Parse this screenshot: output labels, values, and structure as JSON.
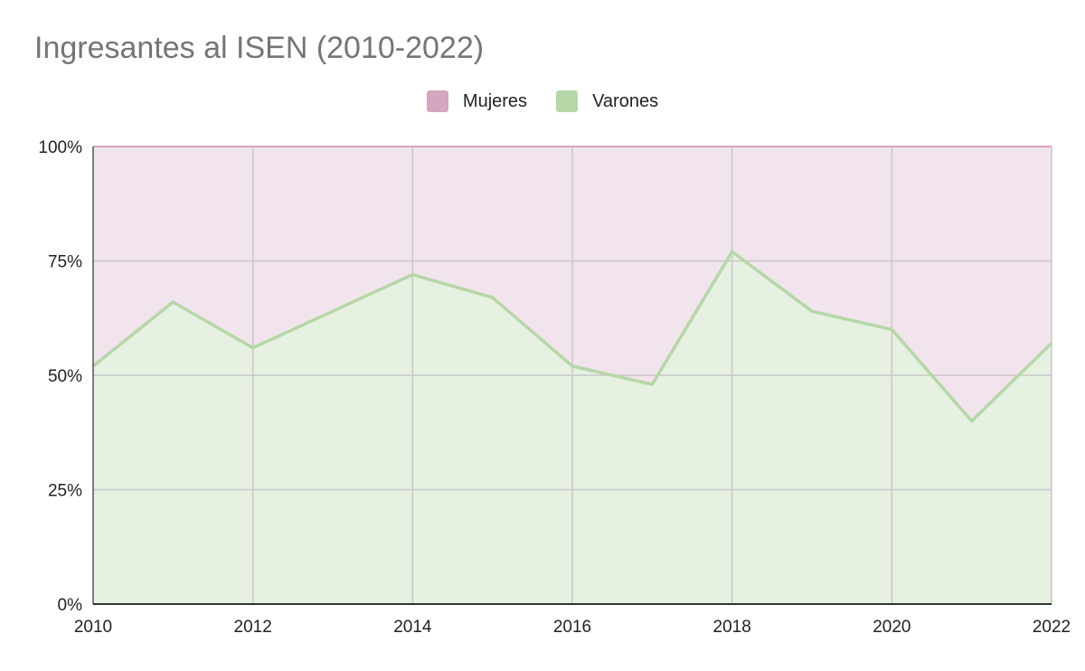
{
  "chart_data": {
    "type": "area",
    "stacked": "percent",
    "title": "Ingresantes al ISEN (2010-2022)",
    "xlabel": "",
    "ylabel": "",
    "x": [
      2010,
      2011,
      2012,
      2013,
      2014,
      2015,
      2016,
      2017,
      2018,
      2019,
      2020,
      2021,
      2022
    ],
    "x_ticks": [
      "2010",
      "2012",
      "2014",
      "2016",
      "2018",
      "2020",
      "2022"
    ],
    "y_ticks": [
      "0%",
      "25%",
      "50%",
      "75%",
      "100%"
    ],
    "ylim": [
      0,
      100
    ],
    "xlim": [
      2010,
      2022
    ],
    "grid": true,
    "legend": "top-center",
    "series": [
      {
        "name": "Varones",
        "color": "#b6d7a8",
        "fill": "#e6f1e2",
        "values": [
          52,
          66,
          56,
          64,
          72,
          67,
          52,
          48,
          77,
          64,
          60,
          40,
          57
        ]
      },
      {
        "name": "Mujeres",
        "color": "#d5a6bd",
        "fill": "#f2e4ec",
        "values": [
          48,
          34,
          44,
          36,
          28,
          33,
          48,
          52,
          23,
          36,
          40,
          60,
          43
        ]
      }
    ]
  }
}
